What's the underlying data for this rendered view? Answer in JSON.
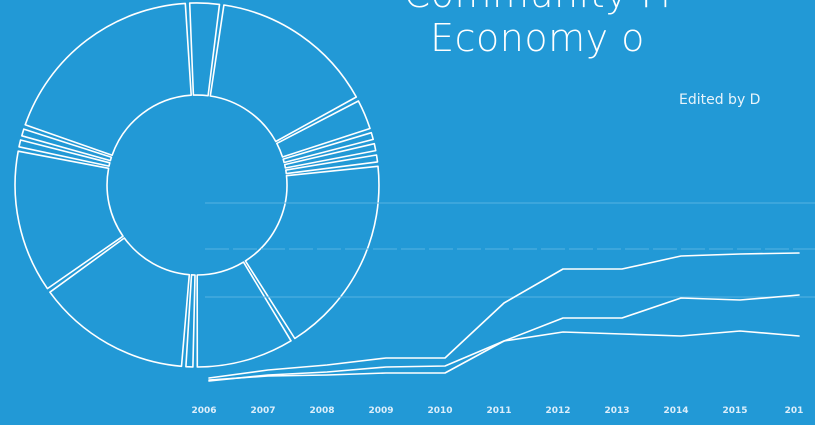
{
  "cover": {
    "title_line1": "Community Fi",
    "title_line2": "Economy o",
    "editor_text": "Edited by D",
    "background_color": "#2299d6",
    "line_color": "#ffffff"
  },
  "chart_data": [
    {
      "type": "pie",
      "style": "hand-drawn donut outline",
      "values": [
        3,
        15,
        3,
        1,
        1,
        1,
        18,
        9,
        1,
        14,
        13,
        1,
        1,
        19
      ]
    },
    {
      "type": "line",
      "categories": [
        "2006",
        "2007",
        "2008",
        "2009",
        "2010",
        "2011",
        "2012",
        "2013",
        "2014",
        "2015",
        "201"
      ],
      "grid": true,
      "series": [
        {
          "values": [
            0.05,
            0.13,
            0.18,
            0.25,
            0.25,
            0.8,
            1.14,
            1.14,
            1.27,
            1.29,
            1.3
          ]
        },
        {
          "values": [
            0.02,
            0.08,
            0.11,
            0.16,
            0.17,
            0.42,
            0.65,
            0.65,
            0.85,
            0.83,
            0.88
          ]
        },
        {
          "values": [
            0.03,
            0.07,
            0.08,
            0.1,
            0.1,
            0.42,
            0.51,
            0.49,
            0.47,
            0.52,
            0.47
          ]
        }
      ]
    }
  ]
}
